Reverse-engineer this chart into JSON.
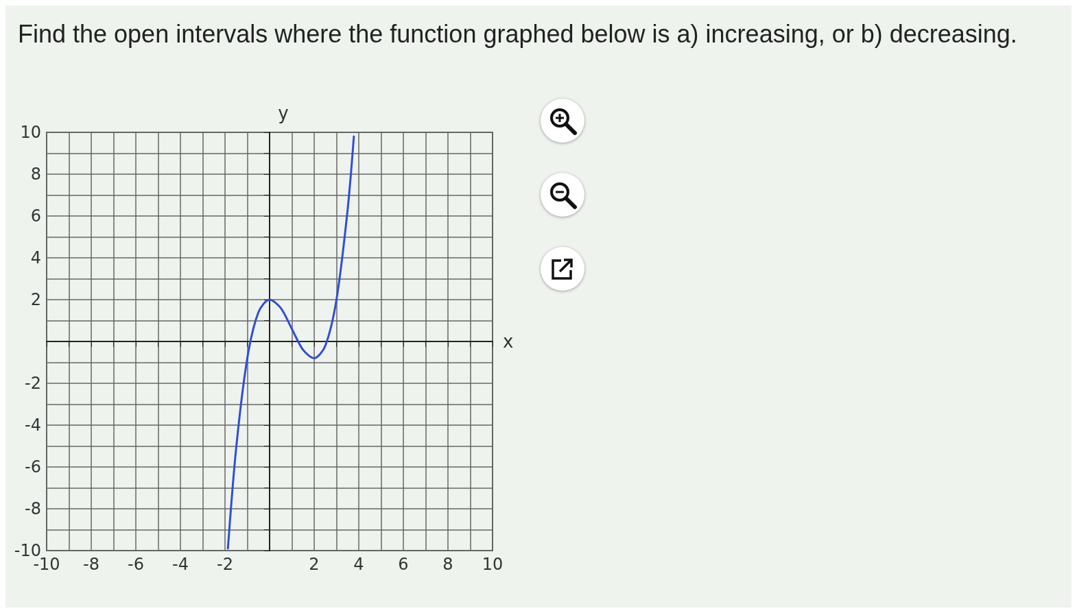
{
  "chart_data": {
    "type": "line",
    "title": "Find the open intervals where the function graphed below is a) increasing, or b) decreasing.",
    "xlabel": "x",
    "ylabel": "y",
    "x": [
      -1.87,
      -1.5,
      -1,
      -0.5,
      0,
      0.5,
      1,
      1.5,
      2,
      2.5,
      3,
      3.5,
      3.78
    ],
    "series": [
      {
        "color": "#2f4fd6",
        "values": [
          -9.9,
          -5.1,
          -0.8,
          1.4,
          2,
          1.6,
          0.6,
          -0.4,
          -0.8,
          -0.2,
          2,
          6.3,
          9.8
        ]
      }
    ],
    "xlim": [
      -10,
      10
    ],
    "ylim": [
      -10,
      10
    ],
    "xticks": [
      -10,
      {
        "value": -9,
        "label": null
      },
      -8,
      {
        "value": -7,
        "label": null
      },
      -6,
      {
        "value": -5,
        "label": null
      },
      -4,
      {
        "value": -3,
        "label": null
      },
      -2,
      {
        "value": -1,
        "label": null
      },
      {
        "value": 0,
        "label": null
      },
      {
        "value": 1,
        "label": null
      },
      2,
      {
        "value": 3,
        "label": null
      },
      4,
      {
        "value": 5,
        "label": null
      },
      6,
      {
        "value": 7,
        "label": null
      },
      8,
      {
        "value": 9,
        "label": null
      },
      10
    ],
    "yticks": [
      -10,
      {
        "value": -9,
        "label": null
      },
      -8,
      {
        "value": -7,
        "label": null
      },
      -6,
      {
        "value": -5,
        "label": null
      },
      -4,
      {
        "value": -3,
        "label": null
      },
      -2,
      {
        "value": -1,
        "label": null
      },
      {
        "value": 0,
        "label": null
      },
      {
        "value": 1,
        "label": null
      },
      2,
      {
        "value": 3,
        "label": null
      },
      4,
      {
        "value": 5,
        "label": null
      },
      6,
      {
        "value": 7,
        "label": null
      },
      8,
      {
        "value": 9,
        "label": null
      },
      10
    ],
    "grid": true,
    "marker": "none",
    "line_style": "solid"
  }
}
